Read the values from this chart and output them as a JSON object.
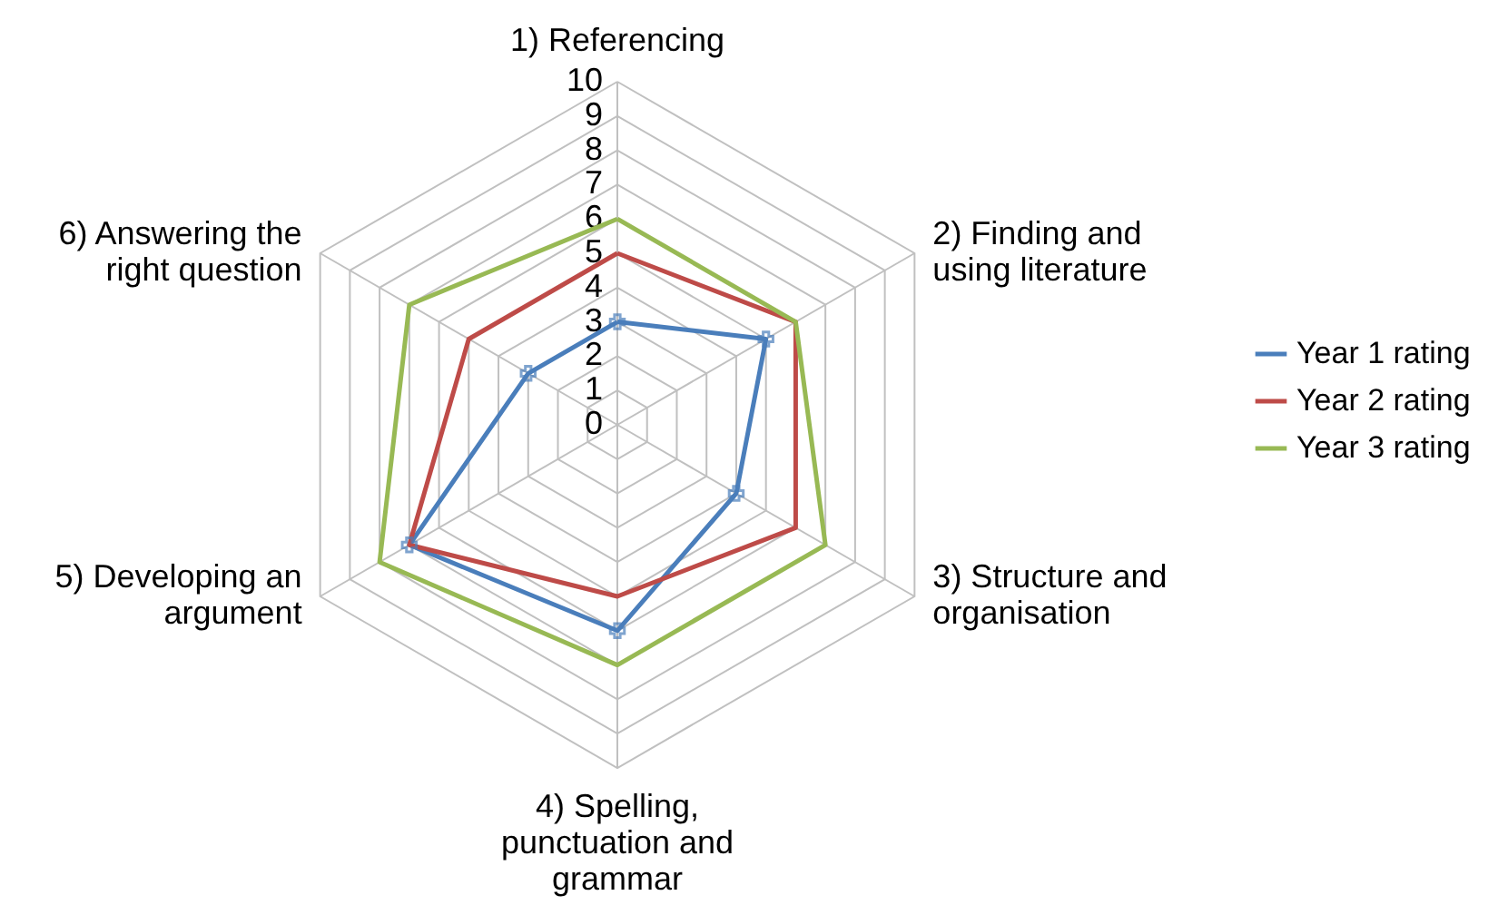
{
  "chart_data": {
    "type": "radar",
    "categories": [
      "1) Referencing",
      "2) Finding and using literature",
      "3) Structure and organisation",
      "4) Spelling, punctuation and grammar",
      "5) Developing an argument",
      "6) Answering the right question"
    ],
    "ylim": [
      0,
      10
    ],
    "yticks": [
      0,
      1,
      2,
      3,
      4,
      5,
      6,
      7,
      8,
      9,
      10
    ],
    "grid": true,
    "legend": "right",
    "series": [
      {
        "name": "Year 1 rating",
        "color": "#4a7ebb",
        "marker": "cross",
        "values": [
          3,
          5,
          4,
          6,
          7,
          3
        ]
      },
      {
        "name": "Year 2 rating",
        "color": "#be4b48",
        "values": [
          5,
          6,
          6,
          5,
          7,
          5
        ]
      },
      {
        "name": "Year 3 rating",
        "color": "#98b954",
        "values": [
          6,
          6,
          7,
          7,
          8,
          7
        ]
      }
    ]
  }
}
